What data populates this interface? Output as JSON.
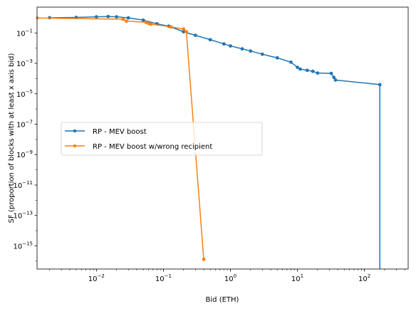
{
  "chart_data": {
    "type": "line",
    "xscale": "log",
    "yscale": "log",
    "xlim": [
      0.0013,
      450
    ],
    "ylim": [
      3e-17,
      5
    ],
    "xlabel": "Bid (ETH)",
    "ylabel": "SF (proportion of blocks with at least x axis bid)",
    "x_ticks": [
      {
        "value": 0.01,
        "base": "10",
        "exp": "−2"
      },
      {
        "value": 0.1,
        "base": "10",
        "exp": "−1"
      },
      {
        "value": 1,
        "base": "10",
        "exp": "0"
      },
      {
        "value": 10,
        "base": "10",
        "exp": "1"
      },
      {
        "value": 100,
        "base": "10",
        "exp": "2"
      }
    ],
    "y_ticks": [
      {
        "value": 1e-15,
        "base": "10",
        "exp": "−15"
      },
      {
        "value": 1e-13,
        "base": "10",
        "exp": "−13"
      },
      {
        "value": 1e-11,
        "base": "10",
        "exp": "−11"
      },
      {
        "value": 1e-09,
        "base": "10",
        "exp": "−9"
      },
      {
        "value": 1e-07,
        "base": "10",
        "exp": "−7"
      },
      {
        "value": 1e-05,
        "base": "10",
        "exp": "−5"
      },
      {
        "value": 0.001,
        "base": "10",
        "exp": "−3"
      },
      {
        "value": 0.1,
        "base": "10",
        "exp": "−1"
      }
    ],
    "legend_position": "center-left",
    "grid": false,
    "series": [
      {
        "name": "RP - MEV boost",
        "color": "#1f77b4",
        "x": [
          0.002,
          0.005,
          0.01,
          0.015,
          0.02,
          0.03,
          0.05,
          0.08,
          0.12,
          0.2,
          0.3,
          0.5,
          0.8,
          1.0,
          1.5,
          2.0,
          3.0,
          5.0,
          8.0,
          10.0,
          11.0,
          14.0,
          17.0,
          20.0,
          32.0,
          35.0,
          37.0,
          170.0,
          170.0
        ],
        "y": [
          1.0,
          1.05,
          1.15,
          1.2,
          1.15,
          0.98,
          0.7,
          0.4,
          0.28,
          0.12,
          0.07,
          0.036,
          0.019,
          0.014,
          0.009,
          0.0065,
          0.004,
          0.0023,
          0.0012,
          0.00055,
          0.00042,
          0.00035,
          0.0003,
          0.00023,
          0.00022,
          0.00012,
          8e-05,
          4e-05,
          1e-20
        ]
      },
      {
        "name": "RP - MEV boost w/wrong recipient",
        "color": "#ff7f0e",
        "x": [
          0.0013,
          0.025,
          0.028,
          0.055,
          0.06,
          0.065,
          0.13,
          0.2,
          0.22,
          0.4
        ],
        "y": [
          0.96,
          0.8,
          0.6,
          0.5,
          0.42,
          0.38,
          0.25,
          0.18,
          0.12,
          1.3e-16
        ]
      }
    ]
  }
}
